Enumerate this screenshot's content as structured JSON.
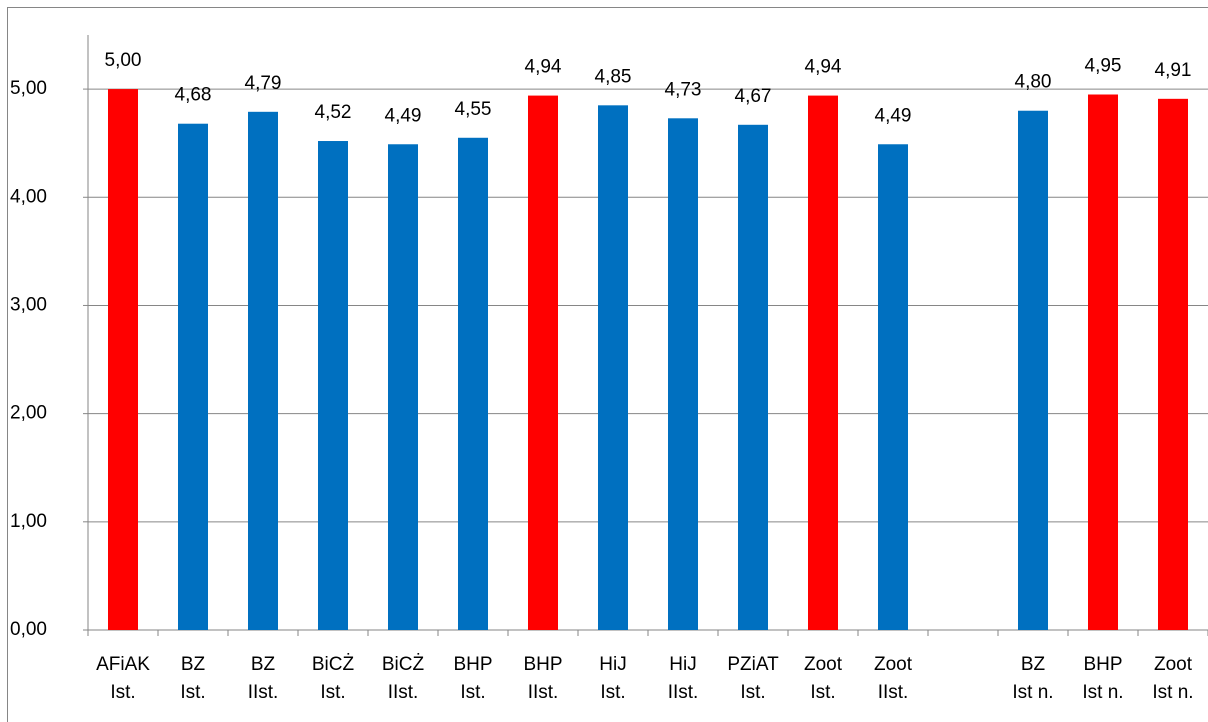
{
  "chart_data": {
    "type": "bar",
    "categories": [
      [
        "AFiAK",
        "Ist."
      ],
      [
        "BZ",
        "Ist."
      ],
      [
        "BZ",
        "IIst."
      ],
      [
        "BiCŻ",
        "Ist."
      ],
      [
        "BiCŻ",
        "IIst."
      ],
      [
        "BHP",
        "Ist."
      ],
      [
        "BHP",
        "IIst."
      ],
      [
        "HiJ",
        "Ist."
      ],
      [
        "HiJ",
        "IIst."
      ],
      [
        "PZiAT",
        "Ist."
      ],
      [
        "Zoot",
        "Ist."
      ],
      [
        "Zoot",
        "IIst."
      ],
      null,
      [
        "BZ",
        "Ist n."
      ],
      [
        "BHP",
        "Ist n."
      ],
      [
        "Zoot",
        "Ist n."
      ]
    ],
    "values": [
      5.0,
      4.68,
      4.79,
      4.52,
      4.49,
      4.55,
      4.94,
      4.85,
      4.73,
      4.67,
      4.94,
      4.49,
      null,
      4.8,
      4.95,
      4.91
    ],
    "value_labels": [
      "5,00",
      "4,68",
      "4,79",
      "4,52",
      "4,49",
      "4,55",
      "4,94",
      "4,85",
      "4,73",
      "4,67",
      "4,94",
      "4,49",
      null,
      "4,80",
      "4,95",
      "4,91"
    ],
    "colors": [
      "#ff0000",
      "#0070c0",
      "#0070c0",
      "#0070c0",
      "#0070c0",
      "#0070c0",
      "#ff0000",
      "#0070c0",
      "#0070c0",
      "#0070c0",
      "#ff0000",
      "#0070c0",
      null,
      "#0070c0",
      "#ff0000",
      "#ff0000"
    ],
    "ylim": [
      0,
      5.5
    ],
    "yticks": [
      {
        "value": 0,
        "label": "0,00"
      },
      {
        "value": 1,
        "label": "1,00"
      },
      {
        "value": 2,
        "label": "2,00"
      },
      {
        "value": 3,
        "label": "3,00"
      },
      {
        "value": 4,
        "label": "4,00"
      },
      {
        "value": 5,
        "label": "5,00"
      }
    ],
    "grid": true
  }
}
